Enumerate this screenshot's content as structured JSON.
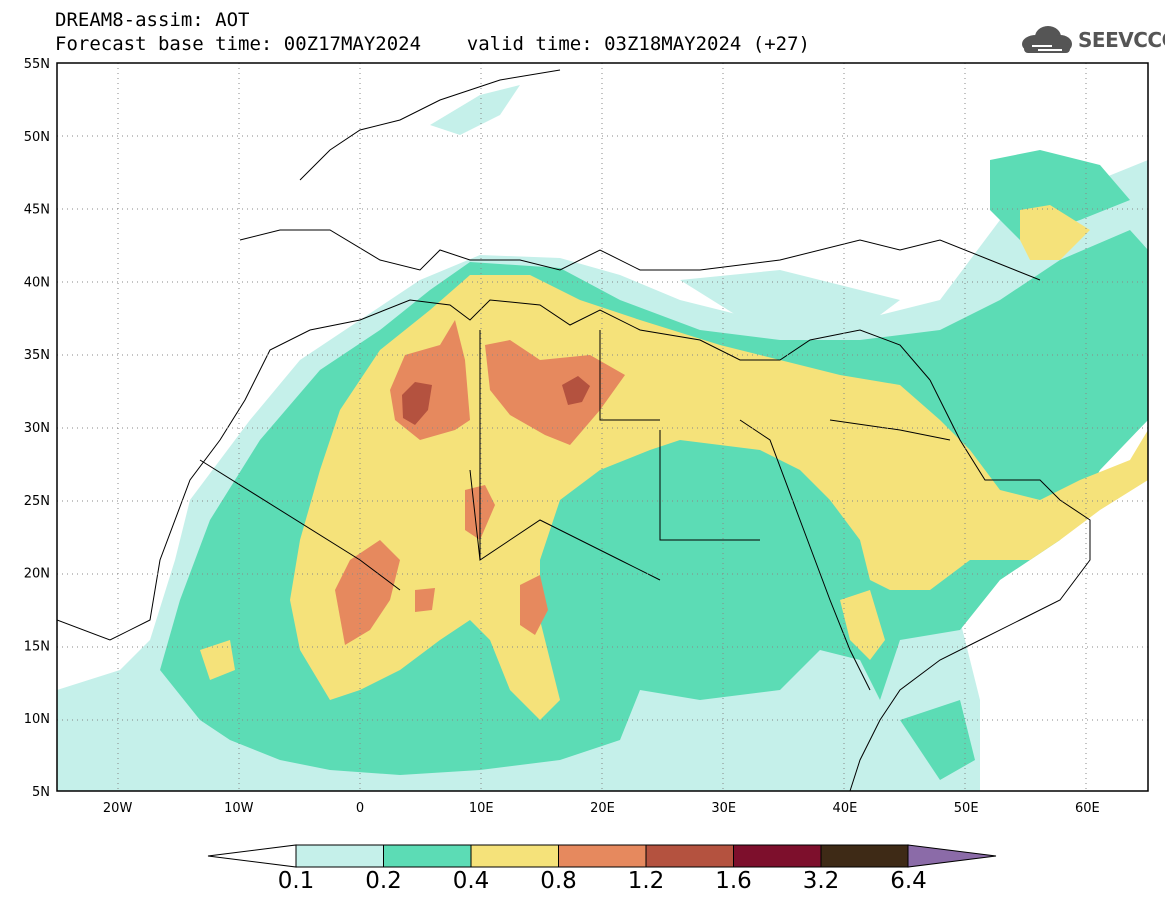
{
  "header": {
    "line1": "DREAM8-assim: AOT",
    "line2": "Forecast base time: 00Z17MAY2024    valid time: 03Z18MAY2024 (+27)"
  },
  "logo": {
    "text": "SEEVCCC",
    "icon": "cloud-icon"
  },
  "map": {
    "lon_range": [
      -25,
      65
    ],
    "lat_range": [
      5,
      55
    ],
    "lat_labels": [
      "5N",
      "10N",
      "15N",
      "20N",
      "25N",
      "30N",
      "35N",
      "40N",
      "45N",
      "50N",
      "55N"
    ],
    "lon_labels": [
      "20W",
      "10W",
      "0",
      "10E",
      "20E",
      "30E",
      "40E",
      "50E",
      "60E"
    ],
    "gridlines": "dotted"
  },
  "colorbar": {
    "labels": [
      "0.1",
      "0.2",
      "0.4",
      "0.8",
      "1.2",
      "1.6",
      "3.2",
      "6.4"
    ],
    "colors": [
      "#c5f0ea",
      "#5cdcb5",
      "#f5e27a",
      "#e6895e",
      "#b4523f",
      "#7d0f2c",
      "#3e2a16"
    ],
    "under_color": "#ffffff",
    "over_color": "#8b6ba8"
  }
}
